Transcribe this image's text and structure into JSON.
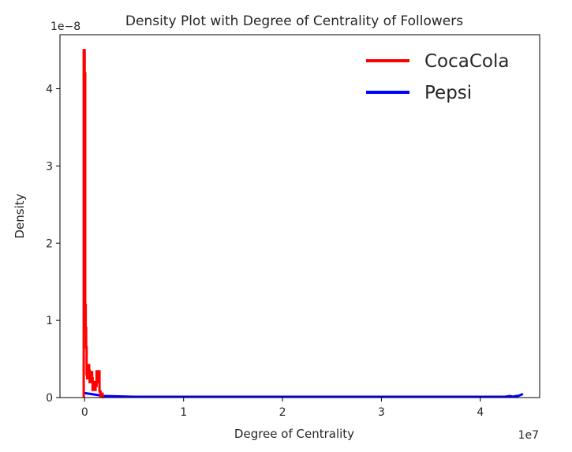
{
  "chart_data": {
    "type": "line",
    "title": "Density Plot with Degree of Centrality of Followers",
    "xlabel": "Degree of Centrality",
    "ylabel": "Density",
    "x_scale_label": "1e7",
    "y_scale_label": "1e−8",
    "xlim": [
      -0.25,
      4.6
    ],
    "ylim": [
      0,
      4.7
    ],
    "x_ticks": [
      0,
      1,
      2,
      3,
      4
    ],
    "x_tick_labels": [
      "0",
      "1",
      "2",
      "3",
      "4"
    ],
    "y_ticks": [
      0,
      1,
      2,
      3,
      4
    ],
    "y_tick_labels": [
      "0",
      "1",
      "2",
      "3",
      "4"
    ],
    "grid": false,
    "legend_position": "top-right",
    "series": [
      {
        "name": "CocaCola",
        "color": "#ff0000",
        "x": [
          -0.01,
          -0.01,
          0.0,
          0.0,
          0.005,
          0.005,
          0.01,
          0.01,
          0.015,
          0.015,
          0.02,
          0.02,
          0.025,
          0.025,
          0.03,
          0.03,
          0.035,
          0.035,
          0.045,
          0.045,
          0.05,
          0.05,
          0.06,
          0.06,
          0.065,
          0.065,
          0.075,
          0.075,
          0.08,
          0.08,
          0.09,
          0.09,
          0.1,
          0.1,
          0.11,
          0.11,
          0.12,
          0.12,
          0.13,
          0.13,
          0.14,
          0.14,
          0.15,
          0.15,
          0.16,
          0.16,
          0.17,
          0.17,
          0.18,
          0.18,
          0.19
        ],
        "y": [
          0,
          4.5,
          4.5,
          4.2,
          4.2,
          1.2,
          1.2,
          0.9,
          0.9,
          0.65,
          0.65,
          0.3,
          0.3,
          0.25,
          0.25,
          0.35,
          0.35,
          0.42,
          0.42,
          0.35,
          0.35,
          0.2,
          0.2,
          0.28,
          0.28,
          0.33,
          0.33,
          0.25,
          0.25,
          0.1,
          0.1,
          0.2,
          0.2,
          0.1,
          0.1,
          0.15,
          0.15,
          0.34,
          0.34,
          0.2,
          0.2,
          0.34,
          0.34,
          0.08,
          0.08,
          0.02,
          0.02,
          0.05,
          0.05,
          0.01,
          0.0
        ]
      },
      {
        "name": "Pepsi",
        "color": "#0000ff",
        "x": [
          -0.01,
          0.2,
          0.5,
          1.0,
          2.0,
          3.0,
          4.0,
          4.25,
          4.3,
          4.33,
          4.36,
          4.38,
          4.4,
          4.42,
          4.43
        ],
        "y": [
          0.06,
          0.02,
          0.01,
          0.01,
          0.01,
          0.01,
          0.01,
          0.01,
          0.02,
          0.01,
          0.02,
          0.02,
          0.03,
          0.04,
          0.05
        ]
      }
    ]
  }
}
